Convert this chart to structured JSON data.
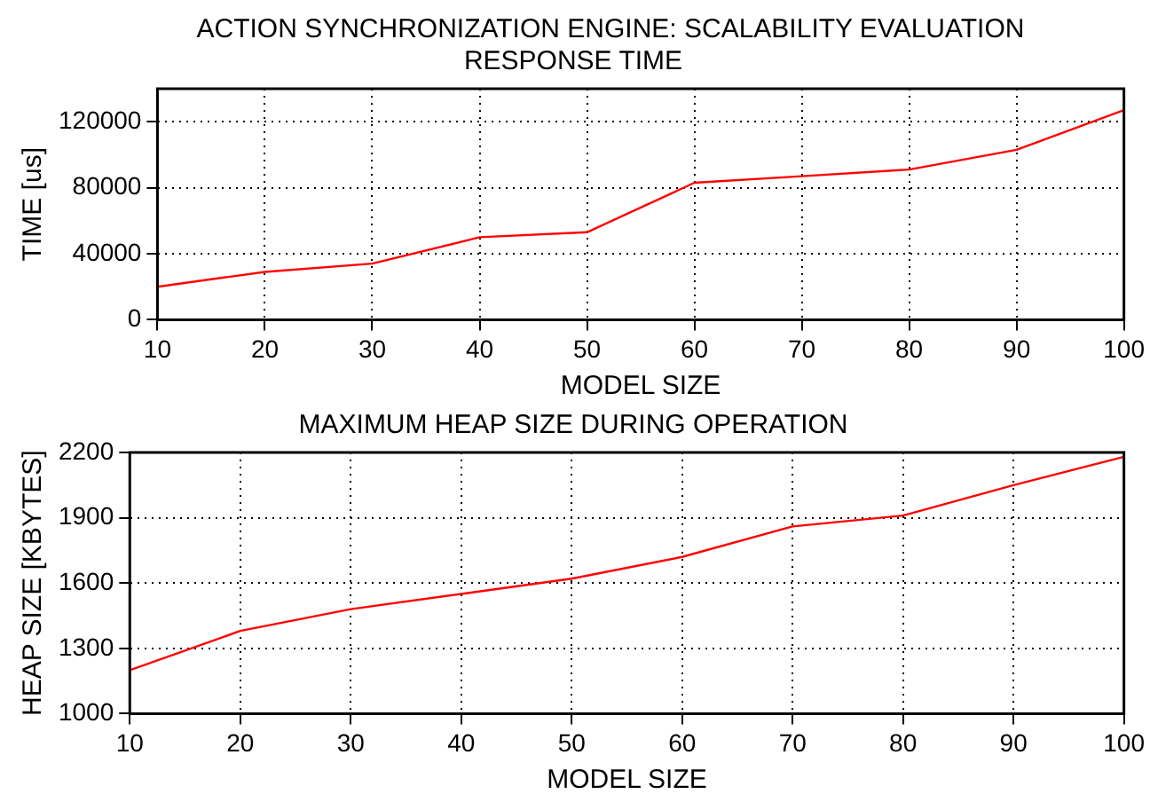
{
  "chart_data": [
    {
      "type": "line",
      "title": "ACTION SYNCHRONIZATION ENGINE: SCALABILITY EVALUATION",
      "subtitle": "RESPONSE TIME",
      "xlabel": "MODEL SIZE",
      "ylabel": "TIME [us]",
      "x": [
        10,
        20,
        30,
        40,
        50,
        60,
        70,
        80,
        90,
        100
      ],
      "series": [
        {
          "color": "#ff0000",
          "values": [
            20000,
            29000,
            34000,
            50000,
            53000,
            83000,
            87000,
            91000,
            103000,
            127000
          ]
        }
      ],
      "xlim": [
        10,
        100
      ],
      "xticks": [
        10,
        20,
        30,
        40,
        50,
        60,
        70,
        80,
        90,
        100
      ],
      "ylim": [
        0,
        140000
      ],
      "yticks": [
        0,
        40000,
        80000,
        120000
      ],
      "grid": true,
      "legend": false,
      "marker": "none",
      "line_style": "solid"
    },
    {
      "type": "line",
      "title": "MAXIMUM HEAP SIZE DURING OPERATION",
      "xlabel": "MODEL SIZE",
      "ylabel": "HEAP SIZE [KBYTES]",
      "x": [
        10,
        20,
        30,
        40,
        50,
        60,
        70,
        80,
        90,
        100
      ],
      "series": [
        {
          "color": "#ff0000",
          "values": [
            1200,
            1380,
            1480,
            1550,
            1620,
            1720,
            1860,
            1910,
            2050,
            2180
          ]
        }
      ],
      "xlim": [
        10,
        100
      ],
      "xticks": [
        10,
        20,
        30,
        40,
        50,
        60,
        70,
        80,
        90,
        100
      ],
      "ylim": [
        1000,
        2200
      ],
      "yticks": [
        1000,
        1300,
        1600,
        1900,
        2200
      ],
      "grid": true,
      "legend": false,
      "marker": "none",
      "line_style": "solid"
    }
  ]
}
